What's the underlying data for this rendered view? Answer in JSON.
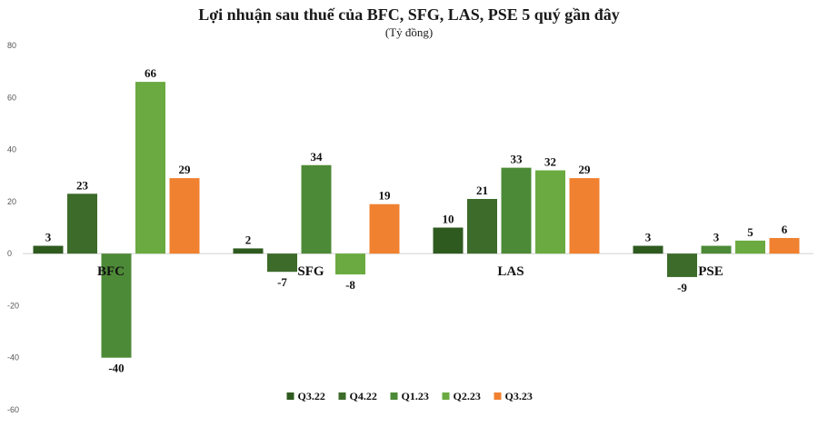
{
  "chart_data": {
    "type": "bar",
    "title": "Lợi nhuận sau thuế của BFC, SFG, LAS, PSE 5 quý gần đây",
    "subtitle": "(Tỷ đồng)",
    "categories": [
      "BFC",
      "SFG",
      "LAS",
      "PSE"
    ],
    "series": [
      {
        "name": "Q3.22",
        "color": "#2f5a1f",
        "values": [
          3,
          2,
          10,
          3
        ]
      },
      {
        "name": "Q4.22",
        "color": "#3d6b2a",
        "values": [
          23,
          -7,
          21,
          -9
        ]
      },
      {
        "name": "Q1.23",
        "color": "#4d8a37",
        "values": [
          -40,
          34,
          33,
          3
        ]
      },
      {
        "name": "Q2.23",
        "color": "#6aaa40",
        "values": [
          66,
          -8,
          32,
          5
        ]
      },
      {
        "name": "Q3.23",
        "color": "#f08130",
        "values": [
          29,
          19,
          29,
          6
        ]
      }
    ],
    "ylim": [
      -60,
      80
    ],
    "yticks": [
      80,
      60,
      40,
      20,
      0,
      -20,
      -40,
      -60
    ],
    "xlabel": "",
    "ylabel": "",
    "legend": "bottom-center",
    "grid": false
  }
}
